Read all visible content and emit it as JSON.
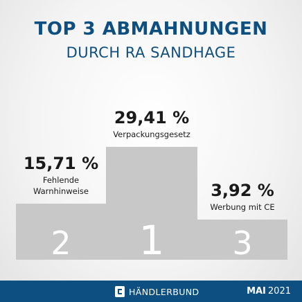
{
  "header": {
    "title": "TOP 3 ABMAHNUNGEN",
    "subtitle": "DURCH RA SANDHAGE"
  },
  "chart_data": {
    "type": "bar",
    "title": "TOP 3 ABMAHNUNGEN",
    "subtitle": "DURCH RA SANDHAGE",
    "categories": [
      "Fehlende Warnhinweise",
      "Verpackungsgesetz",
      "Werbung mit CE"
    ],
    "values": [
      15.71,
      29.41,
      3.92
    ],
    "value_labels": [
      "15,71 %",
      "29,41 %",
      "3,92 %"
    ],
    "label_lines": [
      [
        "Fehlende",
        "Warnhinweise"
      ],
      [
        "Verpackungsgesetz"
      ],
      [
        "Werbung mit CE"
      ]
    ],
    "ranks": [
      "2",
      "1",
      "3"
    ],
    "podium_order": [
      0,
      1,
      2
    ],
    "bar_color": "#c8c8c8",
    "text_color": "#1a1a1a",
    "grid": false,
    "legend": "none"
  },
  "footer": {
    "brand": "HÄNDLERBUND",
    "month": "MAI",
    "year": "2021",
    "background": "#0d4f80"
  }
}
